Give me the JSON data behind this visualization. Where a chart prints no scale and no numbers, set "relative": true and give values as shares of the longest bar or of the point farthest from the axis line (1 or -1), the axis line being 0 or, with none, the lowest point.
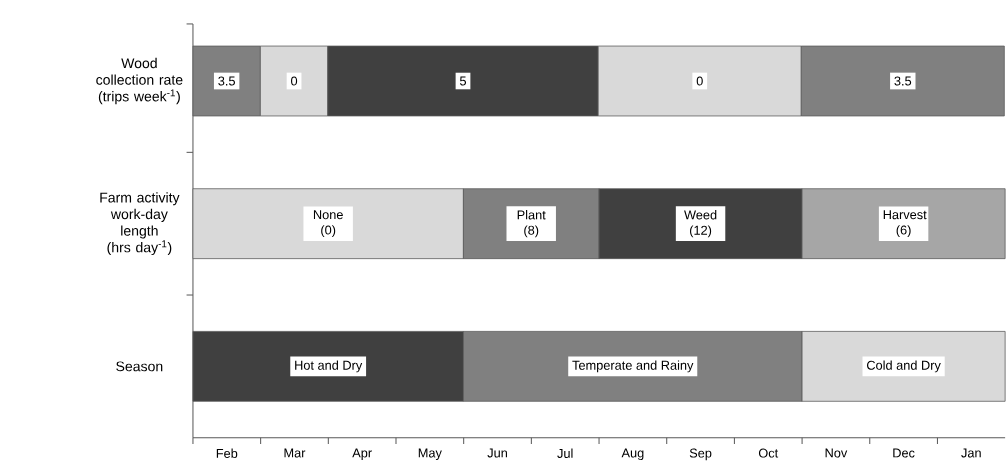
{
  "chart_data": {
    "type": "bar",
    "orientation": "horizontal",
    "stacked": true,
    "relative": true,
    "categories": [
      "Wood collection rate (trips week$^{-1}$)",
      "Farm activity work-day length (hrs day$^{-1}$)",
      "Season"
    ],
    "series": [
      {
        "values": [
          0.083,
          0.333,
          0.333
        ],
        "colors": [
          "#808080",
          "#d9d9d9",
          "#404040"
        ]
      },
      {
        "values": [
          0.083,
          0.167,
          0.417
        ],
        "colors": [
          "#d9d9d9",
          "#808080",
          "#808080"
        ]
      },
      {
        "values": [
          0.333,
          0.25,
          0.25
        ],
        "colors": [
          "#404040",
          "#404040",
          "#d9d9d9"
        ]
      },
      {
        "values": [
          0.25,
          0.25,
          null
        ],
        "colors": [
          "#d9d9d9",
          "#a6a6a6",
          null
        ]
      },
      {
        "values": [
          0.25,
          null,
          null
        ],
        "colors": [
          "#808080",
          null,
          null
        ]
      }
    ],
    "annotations": [
      "3.5",
      "0",
      "5",
      "0",
      "3.5",
      "None (0)",
      "Plant (8)",
      "Weed (12)",
      "Harvest (6)",
      "Hot and Dry",
      "Temperate and Rainy",
      "Cold and Dry",
      "Feb",
      "Mar",
      "Apr",
      "May",
      "Jun",
      "Jul",
      "Aug",
      "Sep",
      "Oct",
      "Nov",
      "Dec",
      "Jan"
    ]
  }
}
